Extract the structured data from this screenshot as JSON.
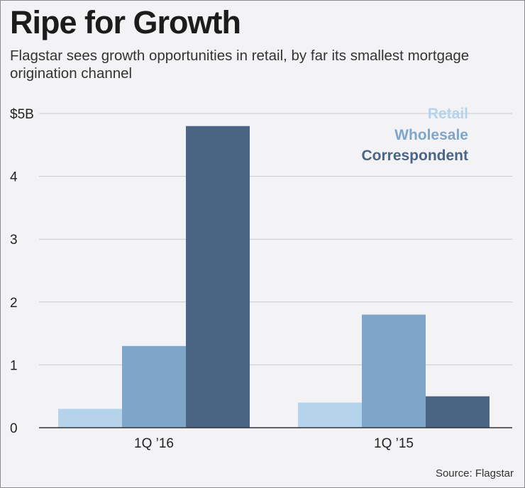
{
  "header": {
    "title": "Ripe for Growth",
    "subtitle": "Flagstar sees growth opportunities in retail, by far its smallest mortgage origination channel"
  },
  "footer": {
    "source": "Source: Flagstar"
  },
  "chart_data": {
    "type": "bar",
    "categories": [
      "1Q ’16",
      "1Q ’15"
    ],
    "series": [
      {
        "name": "Retail",
        "values": [
          0.3,
          0.4
        ],
        "color": "#b6d3ec"
      },
      {
        "name": "Wholesale",
        "values": [
          1.3,
          1.8
        ],
        "color": "#7fa6c8"
      },
      {
        "name": "Correspondent",
        "values": [
          4.8,
          0.5
        ],
        "color": "#4b6584"
      }
    ],
    "yticks": [
      "0",
      "1",
      "2",
      "3",
      "4",
      "$5B"
    ],
    "ylim": [
      0,
      5
    ],
    "grid": true,
    "legend": "top-right"
  }
}
